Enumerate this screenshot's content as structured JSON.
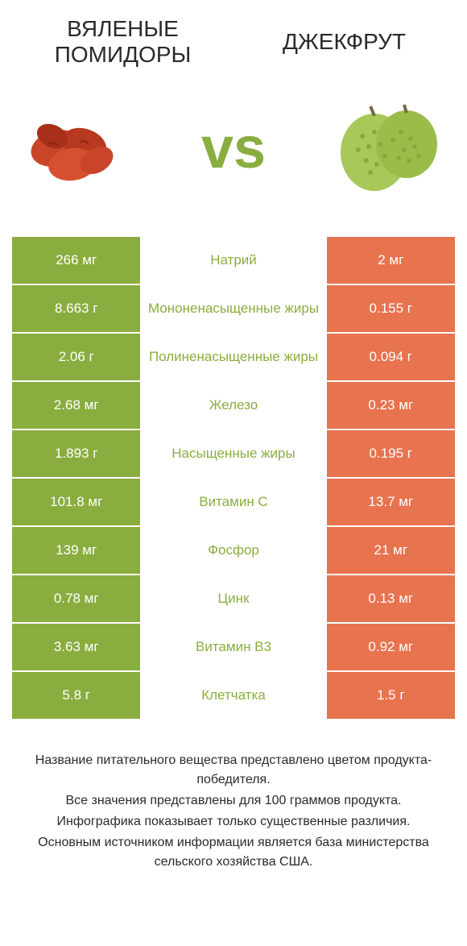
{
  "header": {
    "left_title": "ВЯЛЕНЫЕ ПОМИДОРЫ",
    "right_title": "ДЖЕКФРУТ",
    "vs": "vs"
  },
  "colors": {
    "green": "#8aad3f",
    "orange": "#e8734f",
    "text": "#2a2a2a",
    "background": "#ffffff"
  },
  "rows": [
    {
      "left": "266 мг",
      "nutrient": "Натрий",
      "right": "2 мг",
      "winner": "left"
    },
    {
      "left": "8.663 г",
      "nutrient": "Мононенасыщенные жиры",
      "right": "0.155 г",
      "winner": "left"
    },
    {
      "left": "2.06 г",
      "nutrient": "Полиненасыщенные жиры",
      "right": "0.094 г",
      "winner": "left"
    },
    {
      "left": "2.68 мг",
      "nutrient": "Железо",
      "right": "0.23 мг",
      "winner": "left"
    },
    {
      "left": "1.893 г",
      "nutrient": "Насыщенные жиры",
      "right": "0.195 г",
      "winner": "left"
    },
    {
      "left": "101.8 мг",
      "nutrient": "Витамин C",
      "right": "13.7 мг",
      "winner": "left"
    },
    {
      "left": "139 мг",
      "nutrient": "Фосфор",
      "right": "21 мг",
      "winner": "left"
    },
    {
      "left": "0.78 мг",
      "nutrient": "Цинк",
      "right": "0.13 мг",
      "winner": "left"
    },
    {
      "left": "3.63 мг",
      "nutrient": "Витамин B3",
      "right": "0.92 мг",
      "winner": "left"
    },
    {
      "left": "5.8 г",
      "nutrient": "Клетчатка",
      "right": "1.5 г",
      "winner": "left"
    }
  ],
  "footer": {
    "line1": "Название питательного вещества представлено цветом продукта-победителя.",
    "line2": "Все значения представлены для 100 граммов продукта.",
    "line3": "Инфографика показывает только существенные различия.",
    "line4": "Основным источником информации является база министерства сельского хозяйства США."
  }
}
